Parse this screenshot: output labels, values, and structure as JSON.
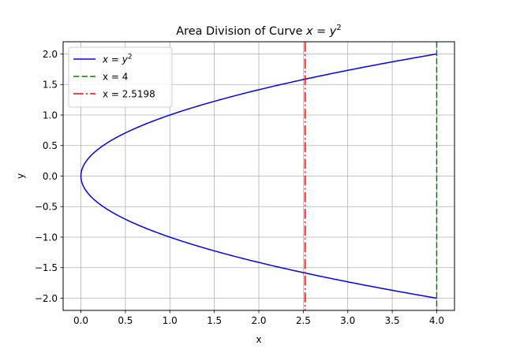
{
  "chart_data": {
    "type": "line",
    "title_prefix": "Area Division of Curve ",
    "title_math": "x = y",
    "title_exp": "2",
    "xlabel": "x",
    "ylabel": "y",
    "xlim": [
      -0.2,
      4.2
    ],
    "ylim": [
      -2.2,
      2.2
    ],
    "xticks": [
      0.0,
      0.5,
      1.0,
      1.5,
      2.0,
      2.5,
      3.0,
      3.5,
      4.0
    ],
    "xtick_labels": [
      "0.0",
      "0.5",
      "1.0",
      "1.5",
      "2.0",
      "2.5",
      "3.0",
      "3.5",
      "4.0"
    ],
    "yticks": [
      -2.0,
      -1.5,
      -1.0,
      -0.5,
      0.0,
      0.5,
      1.0,
      1.5,
      2.0
    ],
    "ytick_labels": [
      "−2.0",
      "−1.5",
      "−1.0",
      "−0.5",
      "0.0",
      "0.5",
      "1.0",
      "1.5",
      "2.0"
    ],
    "grid": true,
    "legend_position": "upper-left",
    "series": [
      {
        "name": "x = y^2",
        "label_math": "x = y",
        "label_exp": "2",
        "kind": "curve",
        "y_range": [
          -2.0,
          2.0
        ],
        "color": "#0000ff",
        "style": "solid"
      },
      {
        "name": "x = 4",
        "label": "x = 4",
        "kind": "vline",
        "x": 4,
        "color": "#008000",
        "style": "dashed"
      },
      {
        "name": "x = 2.5198",
        "label": "x = 2.5198",
        "kind": "vline",
        "x": 2.5198,
        "color": "#ff0000",
        "style": "dashdot"
      }
    ]
  }
}
